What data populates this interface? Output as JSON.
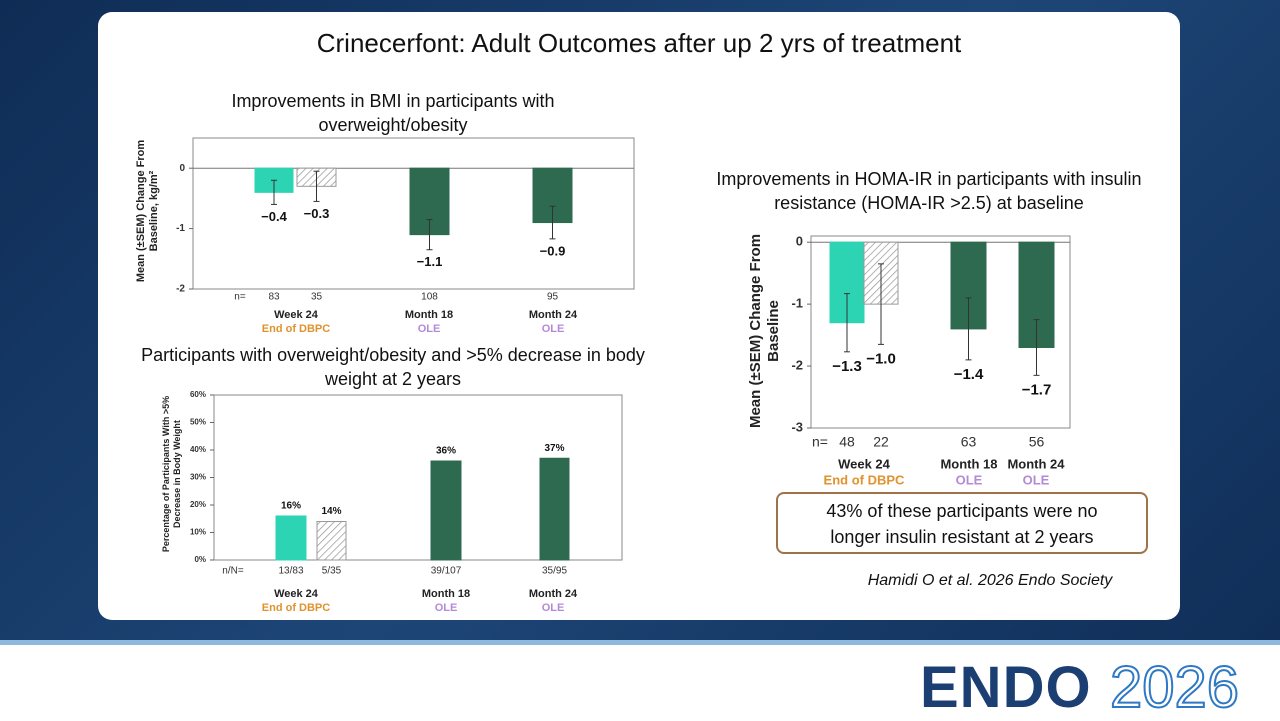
{
  "slide": {
    "title": "Crinecerfont: Adult Outcomes after up 2 yrs of treatment",
    "callout": "43% of these participants were no longer insulin resistant at 2 years",
    "citation": "Hamidi O et al. 2026 Endo Society",
    "logo": {
      "name": "ENDO",
      "year": "2026"
    }
  },
  "chart_data": [
    {
      "type": "bar",
      "title": "Improvements in BMI in participants with overweight/obesity",
      "y_label": "Mean (±SEM) Change From Baseline, kg/m²",
      "values": [
        -0.4,
        -0.3,
        -1.1,
        -0.9
      ],
      "value_labels": [
        "−0.4",
        "−0.3",
        "−1.1",
        "−0.9"
      ],
      "errors": [
        0.2,
        0.25,
        0.25,
        0.27
      ],
      "colors": [
        "#2dd4b4",
        "#d9d9d9",
        "#2d6a4f",
        "#2d6a4f"
      ],
      "hatched": [
        false,
        true,
        false,
        false
      ],
      "n_label": "n=",
      "n": [
        83,
        35,
        108,
        95
      ],
      "groups": [
        {
          "label": "Week 24",
          "sublabel": "End of DBPC",
          "color": "#e0922d"
        },
        {
          "label": "Month 18",
          "sublabel": "OLE",
          "color": "#b48ad8"
        },
        {
          "label": "Month 24",
          "sublabel": "OLE",
          "color": "#b48ad8"
        }
      ],
      "ylim": [
        -2,
        0.5
      ],
      "yticks": [
        0,
        -1,
        -2
      ]
    },
    {
      "type": "bar",
      "title": "Participants with overweight/obesity and >5% decrease in body weight at 2 years",
      "y_label": "Percentage of Participants With >5% Decrease in Body Weight",
      "values": [
        16,
        14,
        36,
        37
      ],
      "value_labels": [
        "16%",
        "14%",
        "36%",
        "37%"
      ],
      "colors": [
        "#2dd4b4",
        "#d9d9d9",
        "#2d6a4f",
        "#2d6a4f"
      ],
      "hatched": [
        false,
        true,
        false,
        false
      ],
      "n_label": "n/N=",
      "n": [
        "13/83",
        "5/35",
        "39/107",
        "35/95"
      ],
      "groups": [
        {
          "label": "Week 24",
          "sublabel": "End of DBPC",
          "color": "#e0922d"
        },
        {
          "label": "Month 18",
          "sublabel": "OLE",
          "color": "#b48ad8"
        },
        {
          "label": "Month 24",
          "sublabel": "OLE",
          "color": "#b48ad8"
        }
      ],
      "ylim": [
        0,
        60
      ],
      "yticks": [
        {
          "value": 0,
          "label": "0%"
        },
        {
          "value": 10,
          "label": "10%"
        },
        {
          "value": 20,
          "label": "20%"
        },
        {
          "value": 30,
          "label": "30%"
        },
        {
          "value": 40,
          "label": "40%"
        },
        {
          "value": 50,
          "label": "50%"
        },
        {
          "value": 60,
          "label": "60%"
        }
      ]
    },
    {
      "type": "bar",
      "title": "Improvements in HOMA-IR in participants with insulin resistance (HOMA-IR >2.5) at baseline",
      "y_label": "Mean (±SEM) Change From Baseline",
      "values": [
        -1.3,
        -1.0,
        -1.4,
        -1.7
      ],
      "value_labels": [
        "−1.3",
        "−1.0",
        "−1.4",
        "−1.7"
      ],
      "errors": [
        0.47,
        0.65,
        0.5,
        0.45
      ],
      "colors": [
        "#2dd4b4",
        "#d9d9d9",
        "#2d6a4f",
        "#2d6a4f"
      ],
      "hatched": [
        false,
        true,
        false,
        false
      ],
      "n_label": "n=",
      "n": [
        48,
        22,
        63,
        56
      ],
      "groups": [
        {
          "label": "Week 24",
          "sublabel": "End of DBPC",
          "color": "#e0922d"
        },
        {
          "label": "Month 18",
          "sublabel": "OLE",
          "color": "#b48ad8"
        },
        {
          "label": "Month 24",
          "sublabel": "OLE",
          "color": "#b48ad8"
        }
      ],
      "ylim": [
        -3,
        0.1
      ],
      "yticks": [
        0,
        -1,
        -2,
        -3
      ]
    }
  ]
}
